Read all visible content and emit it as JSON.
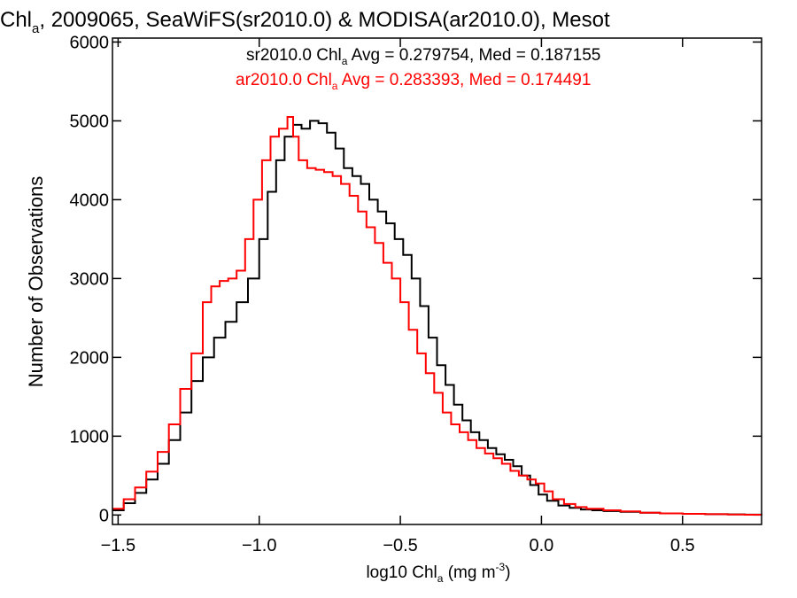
{
  "chart_data": {
    "type": "line",
    "step": true,
    "title_parts": [
      "Chl",
      "a",
      ", 2009065, SeaWiFS(sr2010.0) & MODISA(ar2010.0), Mesot"
    ],
    "xlabel_parts": [
      "log10 Chl",
      "a",
      " (mg m",
      "-3",
      ")"
    ],
    "ylabel": "Number of Observations",
    "xlim": [
      -1.52,
      0.78
    ],
    "ylim": [
      -120,
      6050
    ],
    "x_ticks": [
      {
        "v": -1.5,
        "label": "−1.5"
      },
      {
        "v": -1.0,
        "label": "−1.0"
      },
      {
        "v": -0.5,
        "label": "−0.5"
      },
      {
        "v": 0.0,
        "label": "0.0"
      },
      {
        "v": 0.5,
        "label": "0.5"
      }
    ],
    "y_ticks": [
      {
        "v": 0,
        "label": "0"
      },
      {
        "v": 1000,
        "label": "1000"
      },
      {
        "v": 2000,
        "label": "2000"
      },
      {
        "v": 3000,
        "label": "3000"
      },
      {
        "v": 4000,
        "label": "4000"
      },
      {
        "v": 5000,
        "label": "5000"
      },
      {
        "v": 6000,
        "label": "6000"
      }
    ],
    "legend_placement": "top-right",
    "series": [
      {
        "name": "sr2010.0",
        "color": "#000000",
        "legend_parts": [
          "sr2010.0 Chl",
          "a",
          " Avg = 0.279754, Med = 0.187155"
        ],
        "x": [
          -1.52,
          -1.48,
          -1.44,
          -1.4,
          -1.36,
          -1.32,
          -1.28,
          -1.24,
          -1.2,
          -1.16,
          -1.12,
          -1.08,
          -1.04,
          -1.0,
          -0.97,
          -0.94,
          -0.91,
          -0.88,
          -0.85,
          -0.82,
          -0.79,
          -0.76,
          -0.73,
          -0.7,
          -0.67,
          -0.64,
          -0.61,
          -0.58,
          -0.55,
          -0.52,
          -0.49,
          -0.46,
          -0.43,
          -0.4,
          -0.37,
          -0.34,
          -0.31,
          -0.28,
          -0.25,
          -0.22,
          -0.19,
          -0.16,
          -0.13,
          -0.1,
          -0.07,
          -0.04,
          -0.01,
          0.02,
          0.06,
          0.1,
          0.14,
          0.18,
          0.22,
          0.28,
          0.35,
          0.42,
          0.5,
          0.58,
          0.66,
          0.72,
          0.78
        ],
        "y": [
          60,
          150,
          280,
          450,
          650,
          950,
          1300,
          1700,
          2000,
          2250,
          2450,
          2700,
          3000,
          3500,
          4100,
          4500,
          4800,
          4950,
          4900,
          5000,
          4970,
          4850,
          4650,
          4400,
          4300,
          4200,
          4000,
          3850,
          3700,
          3500,
          3300,
          3000,
          2650,
          2250,
          1900,
          1650,
          1400,
          1200,
          1050,
          950,
          850,
          770,
          700,
          620,
          500,
          380,
          260,
          180,
          120,
          90,
          70,
          60,
          50,
          40,
          30,
          20,
          15,
          10,
          8,
          5,
          3
        ]
      },
      {
        "name": "ar2010.0",
        "color": "#ff0000",
        "legend_parts": [
          "ar2010.0 Chl",
          "a",
          " Avg = 0.283393, Med = 0.174491"
        ],
        "x": [
          -1.52,
          -1.48,
          -1.44,
          -1.4,
          -1.36,
          -1.32,
          -1.28,
          -1.24,
          -1.2,
          -1.17,
          -1.14,
          -1.11,
          -1.08,
          -1.05,
          -1.02,
          -0.99,
          -0.96,
          -0.93,
          -0.9,
          -0.88,
          -0.86,
          -0.83,
          -0.8,
          -0.77,
          -0.74,
          -0.71,
          -0.68,
          -0.65,
          -0.62,
          -0.59,
          -0.56,
          -0.53,
          -0.5,
          -0.47,
          -0.44,
          -0.41,
          -0.38,
          -0.35,
          -0.32,
          -0.29,
          -0.26,
          -0.23,
          -0.2,
          -0.17,
          -0.14,
          -0.11,
          -0.08,
          -0.05,
          -0.02,
          0.01,
          0.04,
          0.08,
          0.12,
          0.16,
          0.22,
          0.28,
          0.35,
          0.42,
          0.5,
          0.58,
          0.66,
          0.72,
          0.78
        ],
        "y": [
          80,
          200,
          350,
          550,
          800,
          1150,
          1600,
          2050,
          2700,
          2900,
          2970,
          3000,
          3100,
          3500,
          4000,
          4500,
          4800,
          4900,
          5050,
          4800,
          4500,
          4400,
          4380,
          4350,
          4300,
          4200,
          4050,
          3850,
          3650,
          3450,
          3200,
          3000,
          2700,
          2350,
          2050,
          1800,
          1550,
          1300,
          1150,
          1050,
          950,
          850,
          780,
          720,
          650,
          560,
          500,
          450,
          400,
          300,
          200,
          140,
          100,
          80,
          60,
          45,
          30,
          20,
          15,
          10,
          6,
          4,
          3
        ]
      }
    ]
  }
}
